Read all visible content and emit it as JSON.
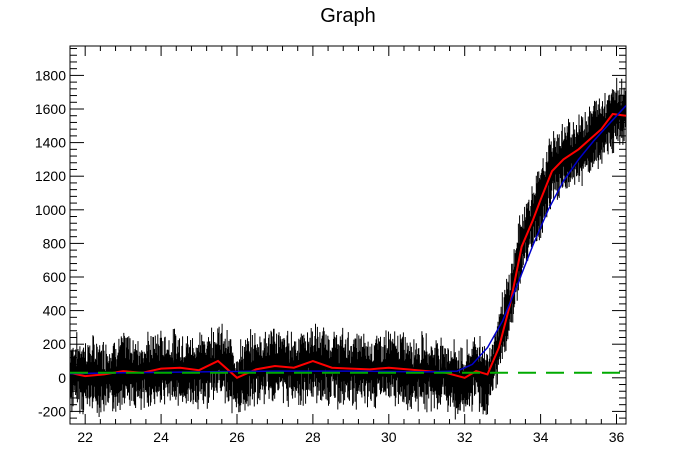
{
  "chart_data": {
    "type": "line",
    "title": "Graph",
    "xlabel": "",
    "ylabel": "",
    "xlim": [
      21.6,
      36.25
    ],
    "ylim": [
      -275,
      1975
    ],
    "x_ticks": [
      22,
      24,
      26,
      28,
      30,
      32,
      34,
      36
    ],
    "y_ticks": [
      -200,
      0,
      200,
      400,
      600,
      800,
      1000,
      1200,
      1400,
      1600,
      1800
    ],
    "x_tick_labels": [
      "22",
      "24",
      "26",
      "28",
      "30",
      "32",
      "34",
      "36"
    ],
    "y_tick_labels": [
      "-200",
      "0",
      "200",
      "400",
      "600",
      "800",
      "1000",
      "1200",
      "1400",
      "1600",
      "1800"
    ],
    "grid": false,
    "legend": "none",
    "series": [
      {
        "color": "#000000",
        "style": "noisy data with vertical error bars",
        "x": [
          21.6,
          22.0,
          22.5,
          23.0,
          23.5,
          24.0,
          24.5,
          25.0,
          25.5,
          26.0,
          26.5,
          27.0,
          27.5,
          28.0,
          28.5,
          29.0,
          29.5,
          30.0,
          30.5,
          31.0,
          31.5,
          32.0,
          32.3,
          32.6,
          32.9,
          33.2,
          33.5,
          33.8,
          34.0,
          34.3,
          34.6,
          35.0,
          35.3,
          35.6,
          35.9,
          36.25
        ],
        "y": [
          30,
          20,
          10,
          45,
          25,
          60,
          50,
          40,
          110,
          -20,
          60,
          80,
          50,
          90,
          60,
          50,
          40,
          60,
          40,
          30,
          20,
          -40,
          60,
          -40,
          200,
          450,
          800,
          950,
          1050,
          1250,
          1300,
          1350,
          1420,
          1480,
          1560,
          1580
        ]
      },
      {
        "color": "#ff0000",
        "style": "smoothed",
        "x": [
          21.6,
          22.0,
          22.5,
          23.0,
          23.5,
          24.0,
          24.5,
          25.0,
          25.5,
          26.0,
          26.5,
          27.0,
          27.5,
          28.0,
          28.5,
          29.0,
          29.5,
          30.0,
          30.5,
          31.0,
          31.5,
          32.0,
          32.3,
          32.6,
          32.9,
          33.2,
          33.5,
          33.8,
          34.0,
          34.3,
          34.6,
          35.0,
          35.3,
          35.6,
          35.9,
          36.25
        ],
        "y": [
          30,
          10,
          20,
          40,
          30,
          55,
          60,
          45,
          100,
          0,
          50,
          70,
          60,
          100,
          60,
          55,
          50,
          60,
          50,
          40,
          30,
          0,
          40,
          20,
          180,
          440,
          780,
          940,
          1060,
          1230,
          1300,
          1360,
          1420,
          1480,
          1570,
          1560
        ]
      },
      {
        "color": "#0000cc",
        "style": "fit curve",
        "x": [
          21.6,
          23.0,
          25.0,
          27.0,
          29.0,
          31.0,
          31.8,
          32.2,
          32.6,
          33.0,
          33.4,
          33.8,
          34.2,
          34.6,
          35.0,
          35.4,
          35.8,
          36.25
        ],
        "y": [
          25,
          30,
          35,
          40,
          40,
          35,
          40,
          80,
          180,
          340,
          560,
          790,
          1000,
          1170,
          1300,
          1410,
          1510,
          1620
        ]
      },
      {
        "color": "#00aa00",
        "style": "dashed baseline",
        "x": [
          21.6,
          36.25
        ],
        "y": [
          30,
          30
        ]
      }
    ]
  }
}
